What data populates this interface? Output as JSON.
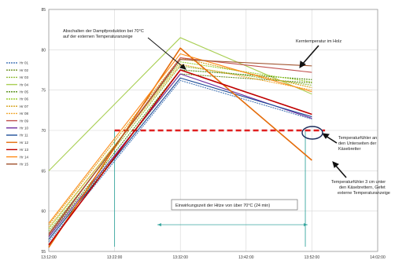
{
  "chart_data": {
    "type": "line",
    "ylim": [
      55,
      85
    ],
    "y_ticks": [
      "55",
      "60",
      "65",
      "70",
      "75",
      "80",
      "85"
    ],
    "x_ticks": [
      "13:12:00",
      "13:22:00",
      "13:32:00",
      "13:42:00",
      "13:52:00",
      "14:02:00"
    ],
    "xlim": [
      "13:12",
      "14:02"
    ],
    "grid": true,
    "legend_position": "left",
    "series": [
      {
        "name": "Hr 01",
        "color": "#4a7ab8",
        "dash": "2 1",
        "points": [
          [
            "13:12",
            56.2
          ],
          [
            "13:32",
            76.2
          ],
          [
            "13:52",
            71.4
          ]
        ]
      },
      {
        "name": "Hr 02",
        "color": "#6b8e23",
        "dash": "2 1",
        "points": [
          [
            "13:12",
            56.5
          ],
          [
            "13:32",
            77.0
          ],
          [
            "13:52",
            75.9
          ]
        ]
      },
      {
        "name": "Hr 03",
        "color": "#8fbc3a",
        "dash": "2 1",
        "points": [
          [
            "13:12",
            57.5
          ],
          [
            "13:32",
            78.0
          ],
          [
            "13:52",
            75.6
          ]
        ]
      },
      {
        "name": "Hr 04",
        "color": "#a9cf54",
        "dash": "",
        "points": [
          [
            "13:12",
            65.0
          ],
          [
            "13:32",
            81.5
          ],
          [
            "13:52",
            74.5
          ]
        ]
      },
      {
        "name": "Hr 05",
        "color": "#4f8a10",
        "dash": "2 1",
        "points": [
          [
            "13:12",
            57.0
          ],
          [
            "13:32",
            77.5
          ],
          [
            "13:52",
            76.3
          ]
        ]
      },
      {
        "name": "Hr 06",
        "color": "#9acd32",
        "dash": "2 1",
        "points": [
          [
            "13:12",
            57.8
          ],
          [
            "13:32",
            78.5
          ],
          [
            "13:52",
            76.0
          ]
        ]
      },
      {
        "name": "Hr 07",
        "color": "#d4a017",
        "dash": "2 1",
        "points": [
          [
            "13:12",
            58.3
          ],
          [
            "13:32",
            79.0
          ],
          [
            "13:52",
            75.3
          ]
        ]
      },
      {
        "name": "Hr 08",
        "color": "#f0a830",
        "dash": "2 1",
        "points": [
          [
            "13:12",
            58.0
          ],
          [
            "13:32",
            78.2
          ],
          [
            "13:52",
            75.0
          ]
        ]
      },
      {
        "name": "Hr 09",
        "color": "#c0504d",
        "dash": "",
        "points": [
          [
            "13:12",
            57.0
          ],
          [
            "13:32",
            79.0
          ],
          [
            "13:52",
            77.2
          ]
        ]
      },
      {
        "name": "Hr 10",
        "color": "#7030a0",
        "dash": "",
        "points": [
          [
            "13:12",
            56.8
          ],
          [
            "13:32",
            77.0
          ],
          [
            "13:52",
            71.5
          ]
        ]
      },
      {
        "name": "Hr 11",
        "color": "#1f4e99",
        "dash": "",
        "points": [
          [
            "13:12",
            56.5
          ],
          [
            "13:32",
            76.5
          ],
          [
            "13:52",
            71.7
          ]
        ]
      },
      {
        "name": "Hr 12",
        "color": "#e46c0a",
        "dash": "",
        "points": [
          [
            "13:12",
            55.5
          ],
          [
            "13:32",
            80.2
          ],
          [
            "13:52",
            66.3
          ]
        ]
      },
      {
        "name": "Hr 13",
        "color": "#c00000",
        "dash": "",
        "points": [
          [
            "13:12",
            55.8
          ],
          [
            "13:32",
            77.5
          ],
          [
            "13:52",
            72.0
          ]
        ]
      },
      {
        "name": "Hr 14",
        "color": "#ff8c1a",
        "dash": "",
        "points": [
          [
            "13:12",
            58.5
          ],
          [
            "13:32",
            79.5
          ],
          [
            "13:52",
            74.8
          ]
        ]
      },
      {
        "name": "Hr 15",
        "color": "#a0522d",
        "dash": "",
        "points": [
          [
            "13:12",
            57.2
          ],
          [
            "13:32",
            78.8
          ],
          [
            "13:52",
            78.0
          ]
        ]
      }
    ],
    "threshold_line": {
      "y": 70,
      "from": "13:22",
      "to": "13:54",
      "color": "#e02020"
    },
    "vertical_markers": [
      {
        "x": "13:22",
        "color": "#3aa8a0"
      },
      {
        "x": "13:51",
        "color": "#3aa8a0"
      }
    ],
    "annotations": [
      {
        "id": "dampf",
        "text": [
          "Abschalten der Dampfproduktion bei 70°C",
          "auf der  externen Temperaturanzeige"
        ]
      },
      {
        "id": "kern",
        "text": [
          "Kerntemperatur im Holz"
        ]
      },
      {
        "id": "unterseite",
        "text": [
          "Temperaturfühler an",
          "den Unterseiten der",
          "Käsebretter"
        ]
      },
      {
        "id": "extern",
        "text": [
          "Temperaturfühler 3 cm unter",
          "den Käsebrettern, Gefet",
          "externe Temperaturanzeige"
        ]
      },
      {
        "id": "einwirkung",
        "text": [
          "Einwirkungszeit der Hitze von über 70°C (24 min)"
        ]
      }
    ]
  }
}
